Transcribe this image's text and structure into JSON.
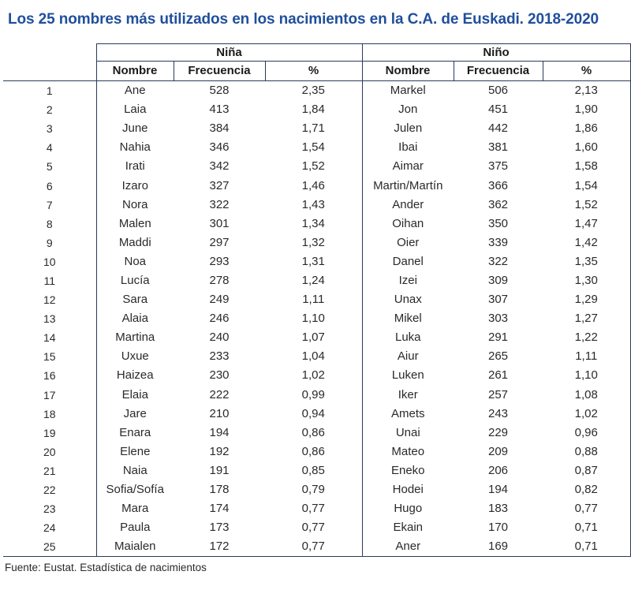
{
  "title": "Los 25 nombres más utilizados en los nacimientos en la C.A. de Euskadi. 2018-2020",
  "groups": {
    "girl": "Niña",
    "boy": "Niño"
  },
  "headers": {
    "name": "Nombre",
    "frequency": "Frecuencia",
    "percent": "%"
  },
  "rows": [
    {
      "rank": "1",
      "girl_name": "Ane",
      "girl_freq": "528",
      "girl_pct": "2,35",
      "boy_name": "Markel",
      "boy_freq": "506",
      "boy_pct": "2,13"
    },
    {
      "rank": "2",
      "girl_name": "Laia",
      "girl_freq": "413",
      "girl_pct": "1,84",
      "boy_name": "Jon",
      "boy_freq": "451",
      "boy_pct": "1,90"
    },
    {
      "rank": "3",
      "girl_name": "June",
      "girl_freq": "384",
      "girl_pct": "1,71",
      "boy_name": "Julen",
      "boy_freq": "442",
      "boy_pct": "1,86"
    },
    {
      "rank": "4",
      "girl_name": "Nahia",
      "girl_freq": "346",
      "girl_pct": "1,54",
      "boy_name": "Ibai",
      "boy_freq": "381",
      "boy_pct": "1,60"
    },
    {
      "rank": "5",
      "girl_name": "Irati",
      "girl_freq": "342",
      "girl_pct": "1,52",
      "boy_name": "Aimar",
      "boy_freq": "375",
      "boy_pct": "1,58"
    },
    {
      "rank": "6",
      "girl_name": "Izaro",
      "girl_freq": "327",
      "girl_pct": "1,46",
      "boy_name": "Martin/Martín",
      "boy_freq": "366",
      "boy_pct": "1,54"
    },
    {
      "rank": "7",
      "girl_name": "Nora",
      "girl_freq": "322",
      "girl_pct": "1,43",
      "boy_name": "Ander",
      "boy_freq": "362",
      "boy_pct": "1,52"
    },
    {
      "rank": "8",
      "girl_name": "Malen",
      "girl_freq": "301",
      "girl_pct": "1,34",
      "boy_name": "Oihan",
      "boy_freq": "350",
      "boy_pct": "1,47"
    },
    {
      "rank": "9",
      "girl_name": "Maddi",
      "girl_freq": "297",
      "girl_pct": "1,32",
      "boy_name": "Oier",
      "boy_freq": "339",
      "boy_pct": "1,42"
    },
    {
      "rank": "10",
      "girl_name": "Noa",
      "girl_freq": "293",
      "girl_pct": "1,31",
      "boy_name": "Danel",
      "boy_freq": "322",
      "boy_pct": "1,35"
    },
    {
      "rank": "11",
      "girl_name": "Lucía",
      "girl_freq": "278",
      "girl_pct": "1,24",
      "boy_name": "Izei",
      "boy_freq": "309",
      "boy_pct": "1,30"
    },
    {
      "rank": "12",
      "girl_name": "Sara",
      "girl_freq": "249",
      "girl_pct": "1,11",
      "boy_name": "Unax",
      "boy_freq": "307",
      "boy_pct": "1,29"
    },
    {
      "rank": "13",
      "girl_name": "Alaia",
      "girl_freq": "246",
      "girl_pct": "1,10",
      "boy_name": "Mikel",
      "boy_freq": "303",
      "boy_pct": "1,27"
    },
    {
      "rank": "14",
      "girl_name": "Martina",
      "girl_freq": "240",
      "girl_pct": "1,07",
      "boy_name": "Luka",
      "boy_freq": "291",
      "boy_pct": "1,22"
    },
    {
      "rank": "15",
      "girl_name": "Uxue",
      "girl_freq": "233",
      "girl_pct": "1,04",
      "boy_name": "Aiur",
      "boy_freq": "265",
      "boy_pct": "1,11"
    },
    {
      "rank": "16",
      "girl_name": "Haizea",
      "girl_freq": "230",
      "girl_pct": "1,02",
      "boy_name": "Luken",
      "boy_freq": "261",
      "boy_pct": "1,10"
    },
    {
      "rank": "17",
      "girl_name": "Elaia",
      "girl_freq": "222",
      "girl_pct": "0,99",
      "boy_name": "Iker",
      "boy_freq": "257",
      "boy_pct": "1,08"
    },
    {
      "rank": "18",
      "girl_name": "Jare",
      "girl_freq": "210",
      "girl_pct": "0,94",
      "boy_name": "Amets",
      "boy_freq": "243",
      "boy_pct": "1,02"
    },
    {
      "rank": "19",
      "girl_name": "Enara",
      "girl_freq": "194",
      "girl_pct": "0,86",
      "boy_name": "Unai",
      "boy_freq": "229",
      "boy_pct": "0,96"
    },
    {
      "rank": "20",
      "girl_name": "Elene",
      "girl_freq": "192",
      "girl_pct": "0,86",
      "boy_name": "Mateo",
      "boy_freq": "209",
      "boy_pct": "0,88"
    },
    {
      "rank": "21",
      "girl_name": "Naia",
      "girl_freq": "191",
      "girl_pct": "0,85",
      "boy_name": "Eneko",
      "boy_freq": "206",
      "boy_pct": "0,87"
    },
    {
      "rank": "22",
      "girl_name": "Sofia/Sofía",
      "girl_freq": "178",
      "girl_pct": "0,79",
      "boy_name": "Hodei",
      "boy_freq": "194",
      "boy_pct": "0,82"
    },
    {
      "rank": "23",
      "girl_name": "Mara",
      "girl_freq": "174",
      "girl_pct": "0,77",
      "boy_name": "Hugo",
      "boy_freq": "183",
      "boy_pct": "0,77"
    },
    {
      "rank": "24",
      "girl_name": "Paula",
      "girl_freq": "173",
      "girl_pct": "0,77",
      "boy_name": "Ekain",
      "boy_freq": "170",
      "boy_pct": "0,71"
    },
    {
      "rank": "25",
      "girl_name": "Maialen",
      "girl_freq": "172",
      "girl_pct": "0,77",
      "boy_name": "Aner",
      "boy_freq": "169",
      "boy_pct": "0,71"
    }
  ],
  "source": "Fuente: Eustat. Estadística de nacimientos",
  "colors": {
    "title": "#1f4f9c",
    "rule": "#2b3a5a"
  }
}
